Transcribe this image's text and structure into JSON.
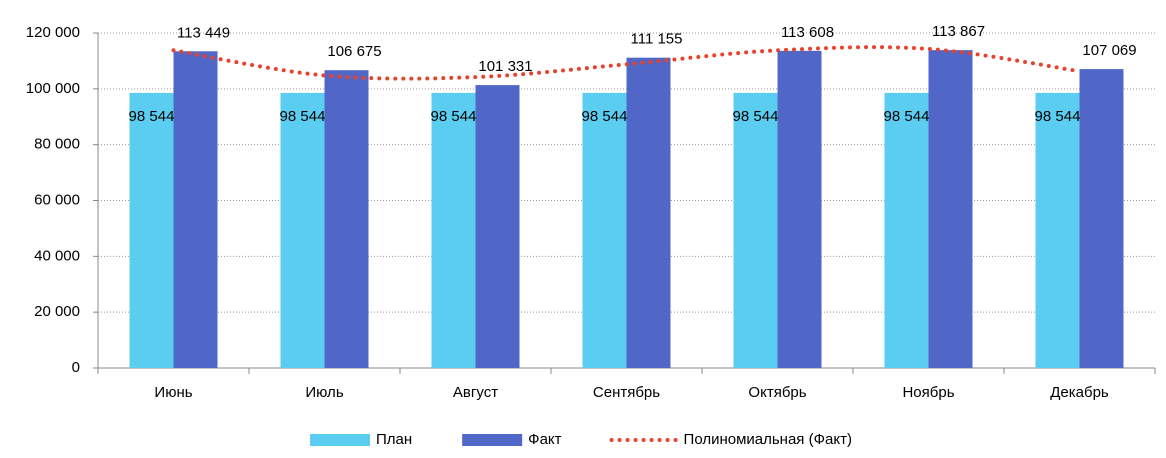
{
  "chart_data": {
    "type": "bar",
    "categories": [
      "Июнь",
      "Июль",
      "Август",
      "Сентябрь",
      "Октябрь",
      "Ноябрь",
      "Декабрь"
    ],
    "series": [
      {
        "name": "План",
        "color": "#5bcdf0",
        "values": [
          98544,
          98544,
          98544,
          98544,
          98544,
          98544,
          98544
        ],
        "value_labels": [
          "98 544",
          "98 544",
          "98 544",
          "98 544",
          "98 544",
          "98 544",
          "98 544"
        ]
      },
      {
        "name": "Факт",
        "color": "#5067c8",
        "values": [
          113449,
          106675,
          101331,
          111155,
          113608,
          113867,
          107069
        ],
        "value_labels": [
          "113 449",
          "106 675",
          "101 331",
          "111 155",
          "113 608",
          "113 867",
          "107 069"
        ]
      },
      {
        "name": "Полиномиальная (Факт)",
        "type": "trendline",
        "color": "#e8412c",
        "values": [
          113800,
          104800,
          104200,
          108800,
          113800,
          114300,
          106300
        ]
      }
    ],
    "ylim": [
      0,
      120000
    ],
    "yticks": [
      0,
      {
        "value": 20000,
        "label": "20 000"
      },
      {
        "value": 40000,
        "label": "40 000"
      },
      {
        "value": 60000,
        "label": "60 000"
      },
      {
        "value": 80000,
        "label": "80 000"
      },
      {
        "value": 100000,
        "label": "100 000"
      },
      {
        "value": 120000,
        "label": "120 000"
      }
    ],
    "grid": true,
    "legend": "bottom"
  }
}
